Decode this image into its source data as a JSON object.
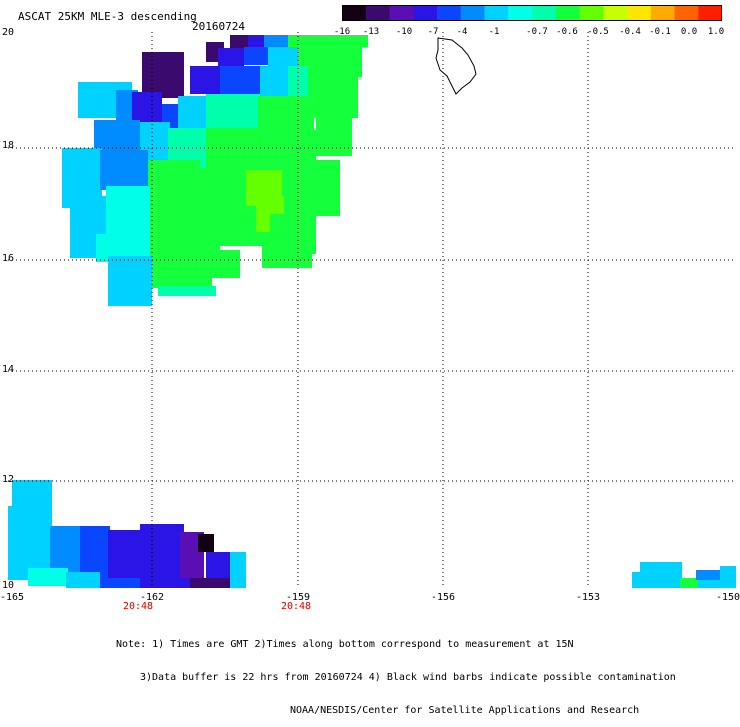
{
  "header": {
    "title": "ASCAT 25KM MLE-3 descending",
    "date": "20160724"
  },
  "colorbar": {
    "labels": [
      "-16",
      "-13",
      "-10",
      "-7",
      "-4",
      "-1",
      "-0.7",
      "-0.6",
      "-0.5",
      "-0.4",
      "-0.1",
      "0.0",
      "1.0"
    ],
    "colors": [
      "#140014",
      "#3a0a6e",
      "#5a0fb4",
      "#2a14e6",
      "#0a46ff",
      "#008cff",
      "#00d2ff",
      "#00ffe6",
      "#00ffaa",
      "#14ff3c",
      "#64ff00",
      "#c8ff00",
      "#ffe600",
      "#ffaa00",
      "#ff6400",
      "#ff1e00"
    ]
  },
  "axes": {
    "x_ticks": [
      "-165",
      "-162",
      "-159",
      "-156",
      "-153",
      "-150"
    ],
    "y_ticks": [
      "20",
      "18",
      "16",
      "14",
      "12",
      "10"
    ],
    "time_labels": [
      "20:48",
      "20:48"
    ]
  },
  "notes": {
    "line1": "Note: 1) Times are GMT 2)Times along bottom correspond to measurement at 15N",
    "line2": "3)Data buffer is 22 hrs from 20160724 4) Black wind barbs indicate possible contamination",
    "line3": "NOAA/NESDIS/Center for Satellite Applications and Research"
  }
}
